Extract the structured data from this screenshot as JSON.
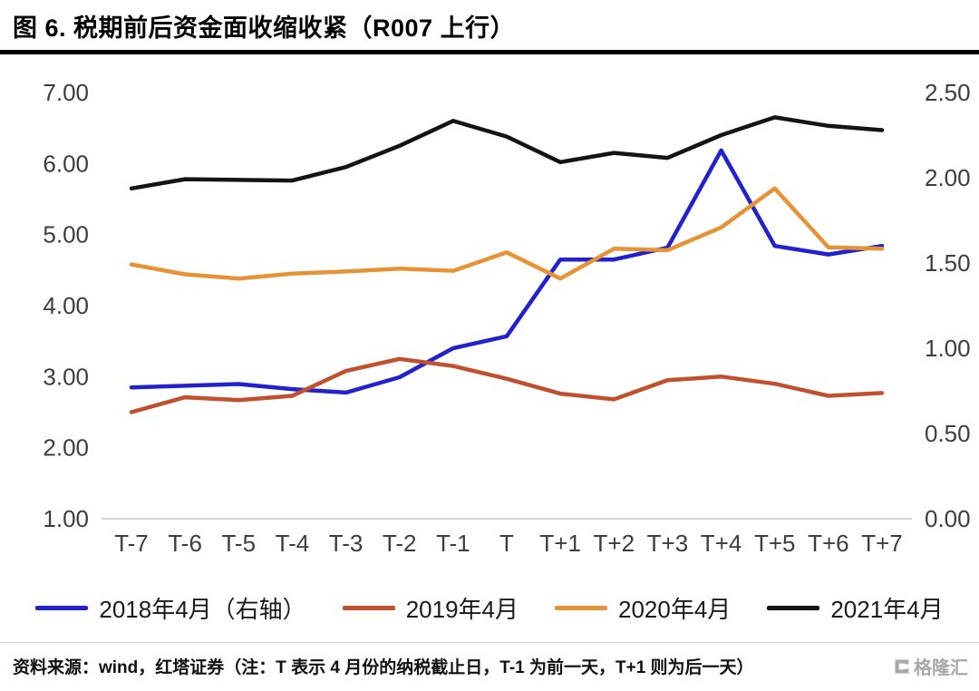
{
  "title": "图 6. 税期前后资金面收缩收紧（R007 上行）",
  "footer": {
    "source_note": "资料来源：wind，红塔证券（注：T 表示 4 月份的纳税截止日，T-1 为前一天，T+1 则为后一天）",
    "logo_text": "格隆汇"
  },
  "chart_data": {
    "type": "line",
    "title": "图 6. 税期前后资金面收缩收紧（R007 上行）",
    "grid": false,
    "legend_position": "bottom",
    "categories": [
      "T-7",
      "T-6",
      "T-5",
      "T-4",
      "T-3",
      "T-2",
      "T-1",
      "T",
      "T+1",
      "T+2",
      "T+3",
      "T+4",
      "T+5",
      "T+6",
      "T+7"
    ],
    "left_axis": {
      "min": 1.0,
      "max": 7.0,
      "ticks": [
        "7.00",
        "6.00",
        "5.00",
        "4.00",
        "3.00",
        "2.00",
        "1.00"
      ]
    },
    "right_axis": {
      "min": 0.0,
      "max": 2.5,
      "ticks": [
        "2.50",
        "2.00",
        "1.50",
        "1.00",
        "0.50",
        "0.00"
      ]
    },
    "series": [
      {
        "id": "2018-apr",
        "name": "2018年4月（右轴）",
        "axis": "right",
        "color": "#2222cc",
        "values": [
          0.77,
          0.78,
          0.79,
          0.76,
          0.74,
          0.83,
          1.0,
          1.07,
          1.52,
          1.52,
          1.59,
          2.16,
          1.6,
          1.55,
          1.6
        ]
      },
      {
        "id": "2019-apr",
        "name": "2019年4月",
        "axis": "left",
        "color": "#c0502e",
        "values": [
          2.5,
          2.71,
          2.67,
          2.73,
          3.08,
          3.25,
          3.15,
          2.97,
          2.76,
          2.68,
          2.95,
          3.0,
          2.9,
          2.73,
          2.77
        ]
      },
      {
        "id": "2020-apr",
        "name": "2020年4月",
        "axis": "left",
        "color": "#e59335",
        "values": [
          4.58,
          4.44,
          4.38,
          4.45,
          4.48,
          4.52,
          4.49,
          4.75,
          4.38,
          4.8,
          4.78,
          5.1,
          5.65,
          4.82,
          4.8
        ]
      },
      {
        "id": "2021-apr",
        "name": "2021年4月",
        "axis": "left",
        "color": "#141414",
        "values": [
          5.65,
          5.78,
          5.77,
          5.76,
          5.95,
          6.25,
          6.6,
          6.38,
          6.02,
          6.15,
          6.08,
          6.4,
          6.65,
          6.53,
          6.47
        ]
      }
    ]
  }
}
